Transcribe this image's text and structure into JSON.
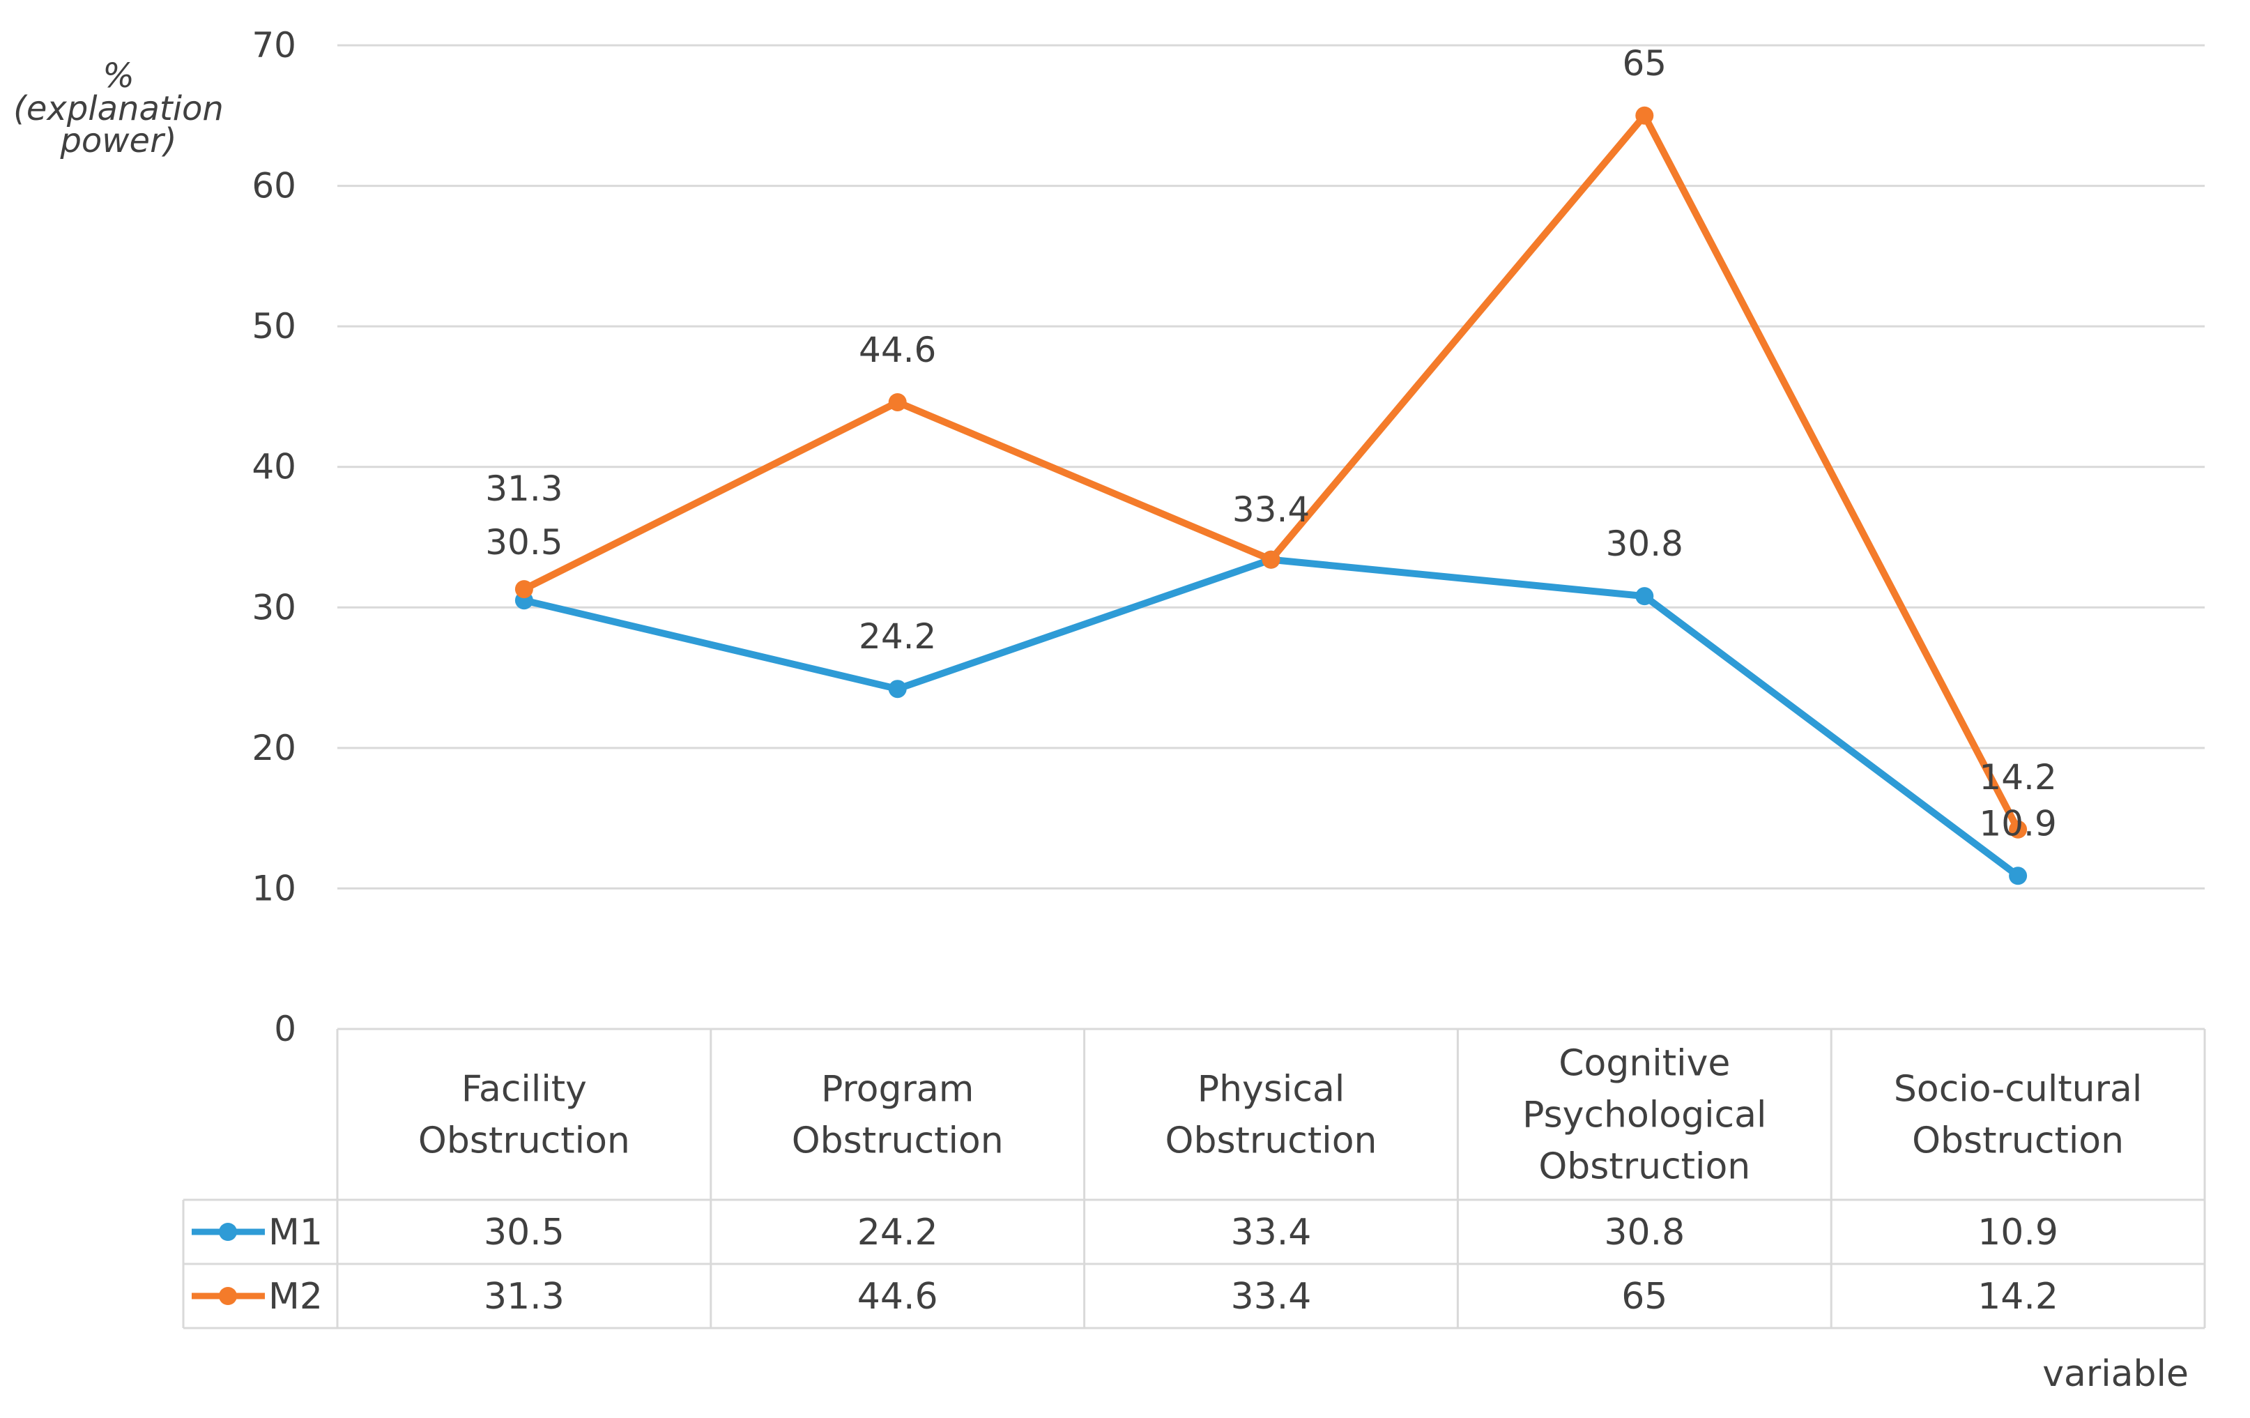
{
  "chart_data": {
    "type": "line",
    "ylabel_lines": [
      "%",
      "(explanation",
      "power)"
    ],
    "xlabel": "variable",
    "ylim": [
      0,
      70
    ],
    "yticks": [
      0,
      10,
      20,
      30,
      40,
      50,
      60,
      70
    ],
    "grid": true,
    "legend": "data-table",
    "categories": [
      [
        "Facility",
        "Obstruction"
      ],
      [
        "Program",
        "Obstruction"
      ],
      [
        "Physical",
        "Obstruction"
      ],
      [
        "Cognitive",
        "Psychological",
        "Obstruction"
      ],
      [
        "Socio-cultural",
        "Obstruction"
      ]
    ],
    "series": [
      {
        "name": "M1",
        "color": "#2E9BD6",
        "values": [
          30.5,
          24.2,
          33.4,
          30.8,
          10.9
        ]
      },
      {
        "name": "M2",
        "color": "#F47B2A",
        "values": [
          31.3,
          44.6,
          33.4,
          65,
          14.2
        ]
      }
    ],
    "table": [
      [
        "30.5",
        "24.2",
        "33.4",
        "30.8",
        "10.9"
      ],
      [
        "31.3",
        "44.6",
        "33.4",
        "65",
        "14.2"
      ]
    ]
  }
}
